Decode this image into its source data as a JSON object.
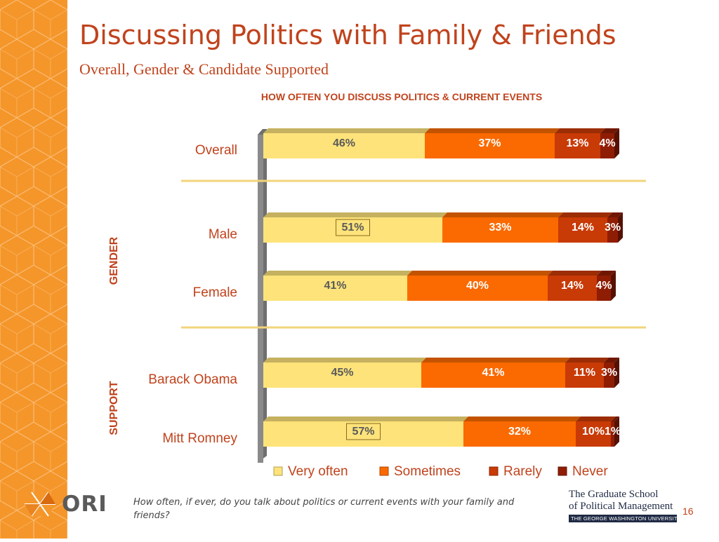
{
  "slide": {
    "title": "Discussing Politics with Family & Friends",
    "subtitle": "Overall, Gender & Candidate Supported",
    "footnote": "How often, if ever, do you talk about politics or current events with your family and friends?",
    "page_number": "16",
    "accent_color": "#c0431d",
    "strip_color": "#f5962a"
  },
  "logos": {
    "ori": {
      "label": "ORI",
      "icon": "ori-hexagon-icon"
    },
    "gw": {
      "line1": "The Graduate School",
      "line2": "of Political Management",
      "line3": "THE GEORGE WASHINGTON UNIVERSITY"
    }
  },
  "chart_data": {
    "type": "bar",
    "orientation": "horizontal",
    "stacked": true,
    "title": "HOW OFTEN YOU DISCUSS  POLITICS & CURRENT EVENTS",
    "categories": [
      "Overall",
      "Male",
      "Female",
      "Barack Obama",
      "Mitt Romney"
    ],
    "groups": [
      {
        "label": "",
        "categories": [
          "Overall"
        ]
      },
      {
        "label": "GENDER",
        "categories": [
          "Male",
          "Female"
        ]
      },
      {
        "label": "SUPPORT",
        "categories": [
          "Barack Obama",
          "Mitt Romney"
        ]
      }
    ],
    "series": [
      {
        "name": "Very often",
        "color": "#fde37a",
        "values": [
          46,
          51,
          41,
          45,
          57
        ]
      },
      {
        "name": "Sometimes",
        "color": "#fa6a00",
        "values": [
          37,
          33,
          40,
          41,
          32
        ]
      },
      {
        "name": "Rarely",
        "color": "#c83a06",
        "values": [
          13,
          14,
          14,
          11,
          10
        ]
      },
      {
        "name": "Never",
        "color": "#8f1d04",
        "values": [
          4,
          3,
          4,
          3,
          1
        ]
      }
    ],
    "value_suffix": "%",
    "xlim": [
      0,
      100
    ],
    "boxed_labels": [
      [
        false,
        false,
        false,
        false
      ],
      [
        true,
        false,
        false,
        false
      ],
      [
        false,
        false,
        false,
        false
      ],
      [
        false,
        false,
        false,
        false
      ],
      [
        true,
        false,
        false,
        false
      ]
    ],
    "legend_position": "bottom",
    "grid": false
  }
}
